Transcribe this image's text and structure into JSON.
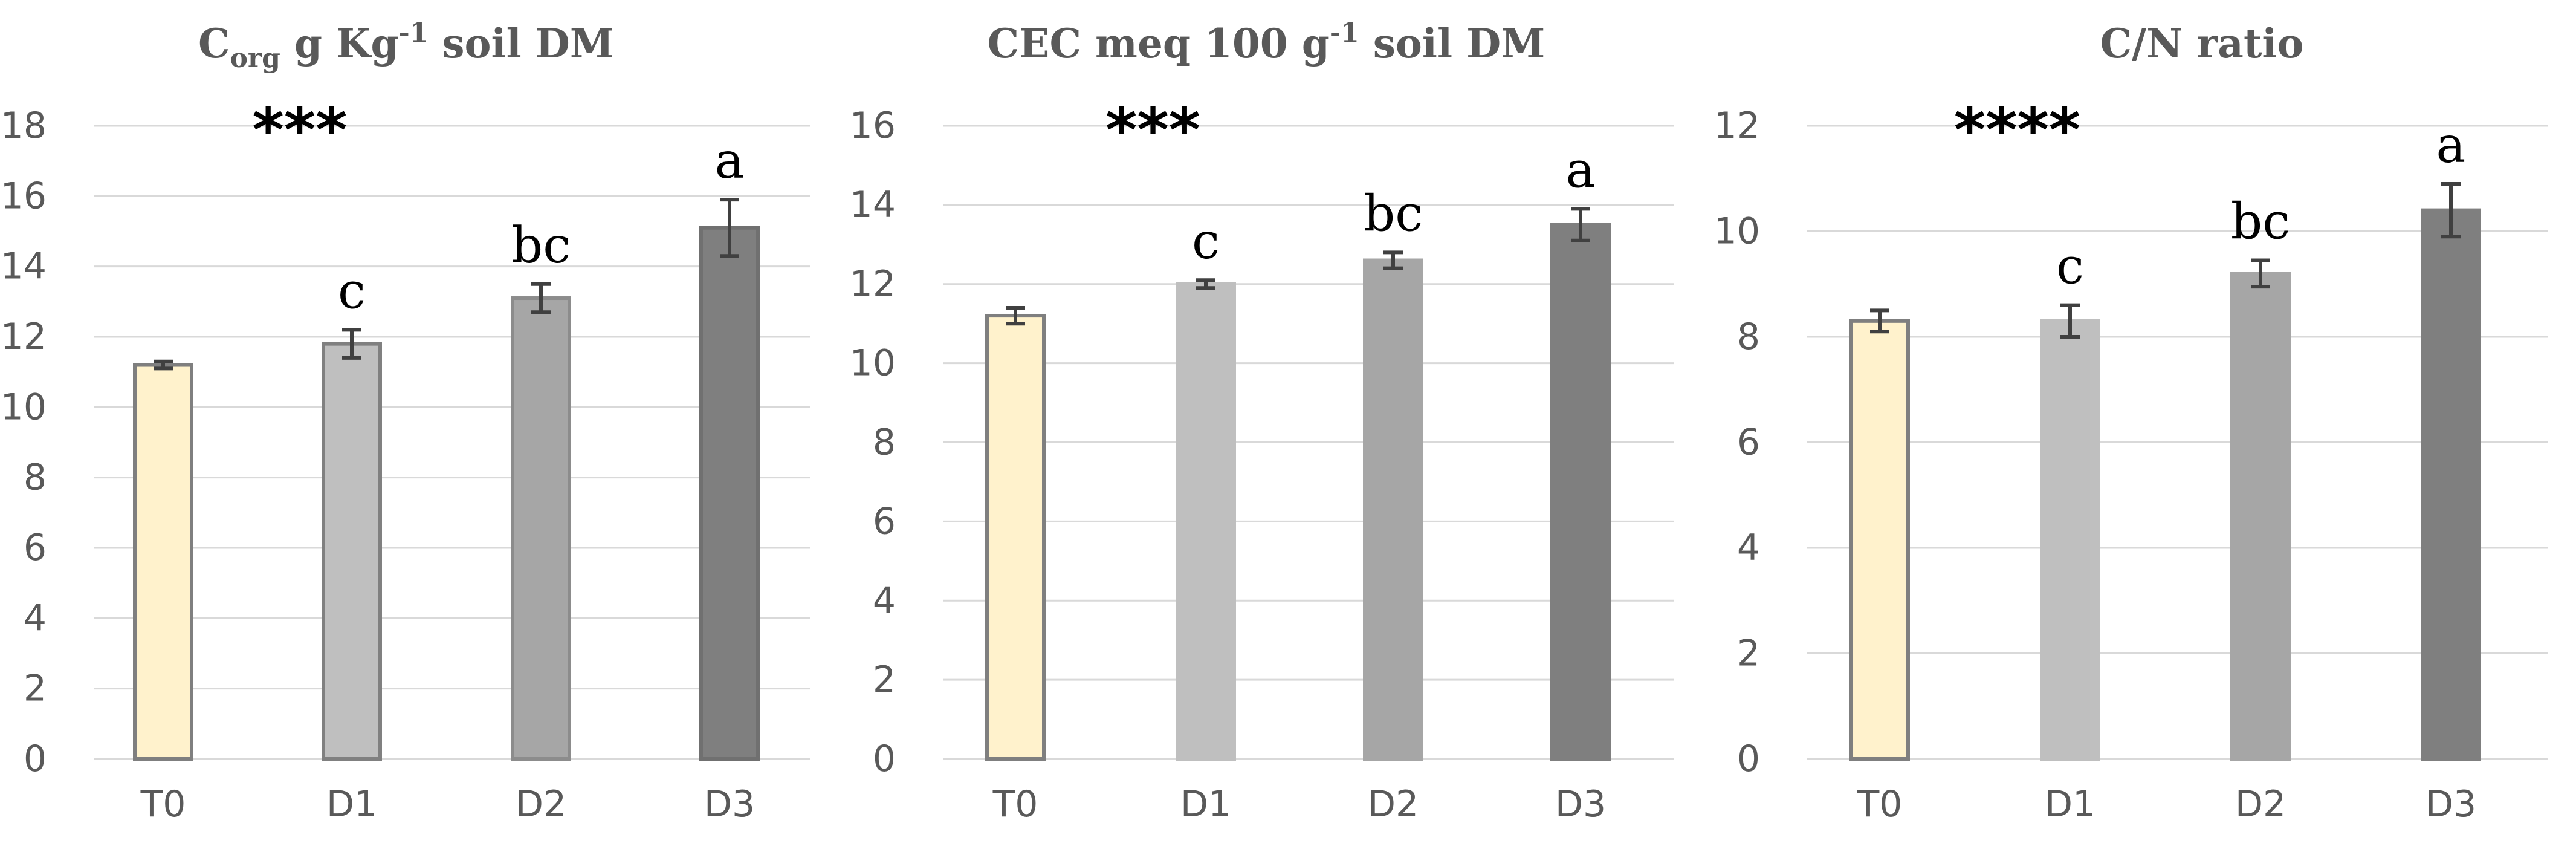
{
  "chart_data": [
    {
      "type": "bar",
      "title_main": "C",
      "title_sub": "org",
      "title_mid": " g Kg",
      "title_sup": "-1",
      "title_end": " soil DM",
      "categories": [
        "T0",
        "D1",
        "D2",
        "D3"
      ],
      "values": [
        11.2,
        11.8,
        13.1,
        15.1
      ],
      "errors": [
        0.1,
        0.4,
        0.4,
        0.8
      ],
      "letters": [
        "",
        "c",
        "bc",
        "a"
      ],
      "significance": "***",
      "ylim": [
        0,
        18
      ],
      "yticks": [
        "0",
        "2",
        "4",
        "6",
        "8",
        "10",
        "12",
        "14",
        "16",
        "18"
      ],
      "bar_fill": [
        "#fff2cc",
        "#bfbfbf",
        "#a6a6a6",
        "#7f7f7f"
      ],
      "bar_stroke": [
        "#7f7f7f",
        "#808080",
        "#8c8c8c",
        "#707070"
      ],
      "grid": true
    },
    {
      "type": "bar",
      "title_main": "CEC meq 100 g",
      "title_sub": "",
      "title_mid": "",
      "title_sup": "-1",
      "title_end": " soil DM",
      "categories": [
        "T0",
        "D1",
        "D2",
        "D3"
      ],
      "values": [
        11.2,
        12.0,
        12.6,
        13.5
      ],
      "errors": [
        0.2,
        0.1,
        0.2,
        0.4
      ],
      "letters": [
        "",
        "c",
        "bc",
        "a"
      ],
      "significance": "***",
      "ylim": [
        0,
        16
      ],
      "yticks": [
        "0",
        "2",
        "4",
        "6",
        "8",
        "10",
        "12",
        "14",
        "16"
      ],
      "bar_fill": [
        "#fff2cc",
        "#bfbfbf",
        "#a6a6a6",
        "#7f7f7f"
      ],
      "bar_stroke": [
        "#7f7f7f",
        "#bfbfbf",
        "#a6a6a6",
        "#7f7f7f"
      ],
      "grid": true
    },
    {
      "type": "bar",
      "title_main": "C/N ratio",
      "title_sub": "",
      "title_mid": "",
      "title_sup": "",
      "title_end": "",
      "categories": [
        "T0",
        "D1",
        "D2",
        "D3"
      ],
      "values": [
        8.3,
        8.3,
        9.2,
        10.4
      ],
      "errors": [
        0.2,
        0.3,
        0.25,
        0.5
      ],
      "letters": [
        "",
        "c",
        "bc",
        "a"
      ],
      "significance": "****",
      "ylim": [
        0,
        12
      ],
      "yticks": [
        "0",
        "2",
        "4",
        "6",
        "8",
        "10",
        "12"
      ],
      "bar_fill": [
        "#fff2cc",
        "#bfbfbf",
        "#a6a6a6",
        "#7f7f7f"
      ],
      "bar_stroke": [
        "#7f7f7f",
        "#bfbfbf",
        "#a6a6a6",
        "#7f7f7f"
      ],
      "grid": true
    }
  ]
}
